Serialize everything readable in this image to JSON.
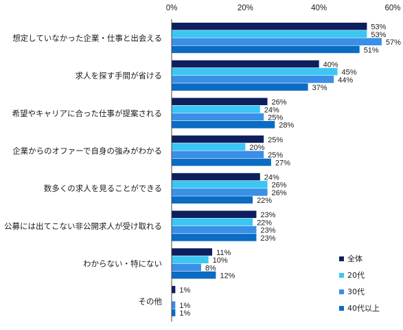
{
  "chart_data": {
    "type": "bar",
    "orientation": "horizontal",
    "categories": [
      "想定していなかった企業・仕事と出会える",
      "求人を探す手間が省ける",
      "希望やキャリアに合った仕事が提案される",
      "企業からのオファーで自身の強みがわかる",
      "数多くの求人を見ることができる",
      "公募には出てこない非公開求人が受け取れる",
      "わからない・特にない",
      "その他"
    ],
    "series": [
      {
        "name": "全体",
        "color": "#0d1f5c",
        "values": [
          53,
          40,
          26,
          25,
          24,
          23,
          11,
          1
        ]
      },
      {
        "name": "20代",
        "color": "#3cc6f4",
        "values": [
          53,
          45,
          24,
          20,
          26,
          22,
          10,
          0
        ]
      },
      {
        "name": "30代",
        "color": "#3a8fe6",
        "values": [
          57,
          44,
          25,
          25,
          26,
          23,
          8,
          1
        ]
      },
      {
        "name": "40代以上",
        "color": "#0a6cc2",
        "values": [
          51,
          37,
          28,
          27,
          22,
          23,
          12,
          1
        ]
      }
    ],
    "value_labels": [
      [
        "53%",
        "53%",
        "57%",
        "51%"
      ],
      [
        "40%",
        "45%",
        "44%",
        "37%"
      ],
      [
        "26%",
        "24%",
        "25%",
        "28%"
      ],
      [
        "25%",
        "20%",
        "25%",
        "27%"
      ],
      [
        "24%",
        "26%",
        "26%",
        "22%"
      ],
      [
        "23%",
        "22%",
        "23%",
        "23%"
      ],
      [
        "11%",
        "10%",
        "8%",
        "12%"
      ],
      [
        "1%",
        "",
        "1%",
        "1%"
      ]
    ],
    "xlim": [
      0,
      60
    ],
    "xticks": [
      "0%",
      "20%",
      "40%",
      "60%"
    ],
    "xtick_values": [
      0,
      20,
      40,
      60
    ],
    "legend_position": "bottom-right",
    "grid": false
  }
}
